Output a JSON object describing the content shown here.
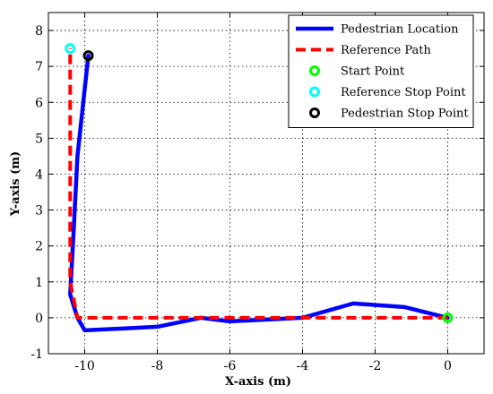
{
  "chart_data": {
    "type": "line",
    "title": "",
    "xlabel": "X-axis (m)",
    "ylabel": "Y-axis (m)",
    "xlim": [
      -11,
      1
    ],
    "ylim": [
      -1,
      8.5
    ],
    "xticks": [
      -10,
      -8,
      -6,
      -4,
      -2,
      0
    ],
    "yticks": [
      -1,
      0,
      1,
      2,
      3,
      4,
      5,
      6,
      7,
      8
    ],
    "xtick_labels": [
      "-10",
      "-8",
      "-6",
      "-4",
      "-2",
      "0"
    ],
    "ytick_labels": [
      "-1",
      "0",
      "1",
      "2",
      "3",
      "4",
      "5",
      "6",
      "7",
      "8"
    ],
    "grid": true,
    "legend_position": "top-right",
    "series": [
      {
        "name": "Pedestrian Location",
        "style": "solid",
        "color": "#0000ff",
        "x": [
          0,
          -1.2,
          -2.6,
          -4,
          -6,
          -6.8,
          -8,
          -10,
          -10.2,
          -10.4,
          -10.3,
          -10.2,
          -9.9
        ],
        "y": [
          0,
          0.3,
          0.4,
          0,
          -0.1,
          0,
          -0.25,
          -0.35,
          0.0,
          0.65,
          2.5,
          4.5,
          7.3
        ]
      },
      {
        "name": "Reference Path",
        "style": "dashed",
        "color": "#ff0000",
        "x": [
          0,
          -10.2,
          -10.4,
          -10.4
        ],
        "y": [
          0,
          0,
          1.0,
          7.5
        ]
      },
      {
        "name": "Start Point",
        "style": "marker",
        "color": "#00ff00",
        "x": [
          0
        ],
        "y": [
          0
        ]
      },
      {
        "name": "Reference Stop Point",
        "style": "marker",
        "color": "#00ffff",
        "x": [
          -10.4
        ],
        "y": [
          7.5
        ]
      },
      {
        "name": "Pedestrian Stop Point",
        "style": "marker",
        "color": "#000000",
        "x": [
          -9.9
        ],
        "y": [
          7.3
        ]
      }
    ]
  }
}
